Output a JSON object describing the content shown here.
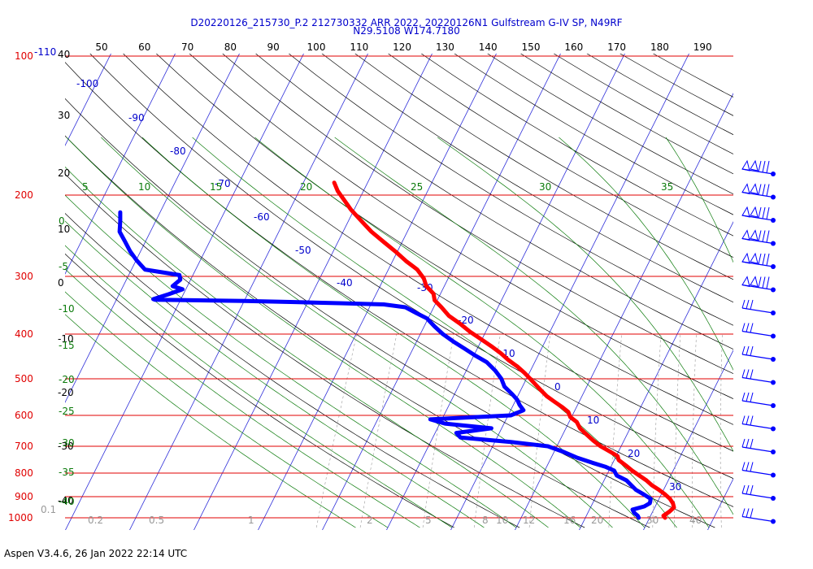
{
  "chart_data": {
    "type": "line",
    "title_line1": "D20220126_215730_P.2 212730332 ARR 2022, 20220126N1 Gulfstream G-IV SP, N49RF",
    "title_line2": "N29.5108 W174.7180",
    "pressure_labels": [
      {
        "p": 100,
        "text": "100"
      },
      {
        "p": 200,
        "text": "200"
      },
      {
        "p": 300,
        "text": "300"
      },
      {
        "p": 400,
        "text": "400"
      },
      {
        "p": 500,
        "text": "500"
      },
      {
        "p": 600,
        "text": "600"
      },
      {
        "p": 700,
        "text": "700"
      },
      {
        "p": 800,
        "text": "800"
      },
      {
        "p": 900,
        "text": "900"
      },
      {
        "p": 1000,
        "text": "1000"
      }
    ],
    "top_pressure_extra": "-110",
    "theta_ticks": [
      "50",
      "60",
      "70",
      "80",
      "90",
      "100",
      "110",
      "120",
      "130",
      "140",
      "150",
      "160",
      "170",
      "180",
      "190"
    ],
    "left_numbers": [
      "40",
      "30",
      "20",
      "10",
      "0",
      "-10",
      "-20",
      "-30",
      "-40"
    ],
    "temp_labels": [
      "-100",
      "-90",
      "-80",
      "-70",
      "-60",
      "-50",
      "-40",
      "-30",
      "-20",
      "-10",
      "0",
      "10",
      "20",
      "30"
    ],
    "theta_e_labels": [
      "5",
      "10",
      "15",
      "20",
      "25",
      "30",
      "35"
    ],
    "theta_e_left": [
      "0",
      "-5",
      "-10",
      "-15",
      "-20",
      "-25",
      "-30",
      "-35",
      "-40"
    ],
    "mixing_ratio_labels": [
      "0.1",
      "0.2",
      "0.5",
      "1",
      "2",
      "5",
      "8",
      "10",
      "12",
      "16",
      "20",
      "30",
      "40"
    ],
    "series": [
      {
        "name": "Temperature",
        "color": "#ff0000",
        "points": [
          [
            1000,
            12.4
          ],
          [
            990,
            12.0
          ],
          [
            970,
            12.6
          ],
          [
            950,
            13.0
          ],
          [
            930,
            12.5
          ],
          [
            910,
            11.7
          ],
          [
            890,
            10.6
          ],
          [
            870,
            9.3
          ],
          [
            850,
            7.8
          ],
          [
            830,
            6.6
          ],
          [
            810,
            5.1
          ],
          [
            790,
            3.6
          ],
          [
            770,
            2.2
          ],
          [
            750,
            0.7
          ],
          [
            735,
            0.2
          ],
          [
            720,
            -1.2
          ],
          [
            700,
            -3.2
          ],
          [
            680,
            -4.8
          ],
          [
            660,
            -6.3
          ],
          [
            640,
            -7.8
          ],
          [
            620,
            -8.8
          ],
          [
            605,
            -10.2
          ],
          [
            590,
            -10.9
          ],
          [
            575,
            -12.3
          ],
          [
            560,
            -13.9
          ],
          [
            545,
            -15.5
          ],
          [
            530,
            -16.8
          ],
          [
            515,
            -18.1
          ],
          [
            500,
            -19.4
          ],
          [
            485,
            -20.8
          ],
          [
            470,
            -22.4
          ],
          [
            455,
            -24.3
          ],
          [
            440,
            -26.0
          ],
          [
            425,
            -28.0
          ],
          [
            410,
            -30.2
          ],
          [
            395,
            -32.5
          ],
          [
            380,
            -34.6
          ],
          [
            365,
            -37.0
          ],
          [
            350,
            -38.8
          ],
          [
            338,
            -40.4
          ],
          [
            327,
            -41.1
          ],
          [
            315,
            -42.8
          ],
          [
            303,
            -43.8
          ],
          [
            290,
            -45.5
          ],
          [
            278,
            -47.9
          ],
          [
            265,
            -50.3
          ],
          [
            253,
            -52.8
          ],
          [
            240,
            -55.6
          ],
          [
            228,
            -57.9
          ],
          [
            215,
            -60.5
          ],
          [
            205,
            -62.3
          ],
          [
            196,
            -64.0
          ],
          [
            188,
            -65.2
          ]
        ]
      },
      {
        "name": "Dewpoint",
        "color": "#0000ff",
        "points": [
          [
            1000,
            8.3
          ],
          [
            990,
            8.0
          ],
          [
            975,
            7.2
          ],
          [
            960,
            6.7
          ],
          [
            945,
            8.3
          ],
          [
            930,
            8.9
          ],
          [
            910,
            8.7
          ],
          [
            890,
            7.3
          ],
          [
            870,
            5.7
          ],
          [
            850,
            4.6
          ],
          [
            830,
            3.5
          ],
          [
            810,
            1.6
          ],
          [
            790,
            0.8
          ],
          [
            775,
            -0.9
          ],
          [
            760,
            -3.2
          ],
          [
            740,
            -6.1
          ],
          [
            720,
            -8.5
          ],
          [
            700,
            -11.4
          ],
          [
            685,
            -17.5
          ],
          [
            670,
            -25.7
          ],
          [
            655,
            -26.7
          ],
          [
            640,
            -21.6
          ],
          [
            625,
            -29.2
          ],
          [
            612,
            -31.8
          ],
          [
            600,
            -19.6
          ],
          [
            585,
            -18.0
          ],
          [
            570,
            -19.0
          ],
          [
            555,
            -19.8
          ],
          [
            540,
            -21.0
          ],
          [
            520,
            -22.8
          ],
          [
            500,
            -23.9
          ],
          [
            480,
            -25.5
          ],
          [
            460,
            -27.5
          ],
          [
            445,
            -29.8
          ],
          [
            430,
            -32.0
          ],
          [
            415,
            -34.3
          ],
          [
            400,
            -36.5
          ],
          [
            385,
            -38.4
          ],
          [
            370,
            -40.2
          ],
          [
            360,
            -42.3
          ],
          [
            350,
            -44.4
          ],
          [
            345,
            -48.0
          ],
          [
            343,
            -55.0
          ],
          [
            341,
            -62.0
          ],
          [
            339,
            -70.0
          ],
          [
            338,
            -78.0
          ],
          [
            337,
            -84.0
          ],
          [
            336,
            -84.3
          ],
          [
            328,
            -82.3
          ],
          [
            320,
            -80.5
          ],
          [
            315,
            -82.3
          ],
          [
            305,
            -81.6
          ],
          [
            298,
            -82.1
          ],
          [
            290,
            -87.9
          ],
          [
            277,
            -89.9
          ],
          [
            265,
            -91.6
          ],
          [
            252,
            -93.2
          ],
          [
            240,
            -94.8
          ],
          [
            228,
            -95.5
          ],
          [
            218,
            -96.2
          ]
        ]
      }
    ],
    "wind_barbs_count": 16
  },
  "footer": {
    "text": "Aspen V3.4.6, 26 Jan 2022  22:14 UTC"
  }
}
